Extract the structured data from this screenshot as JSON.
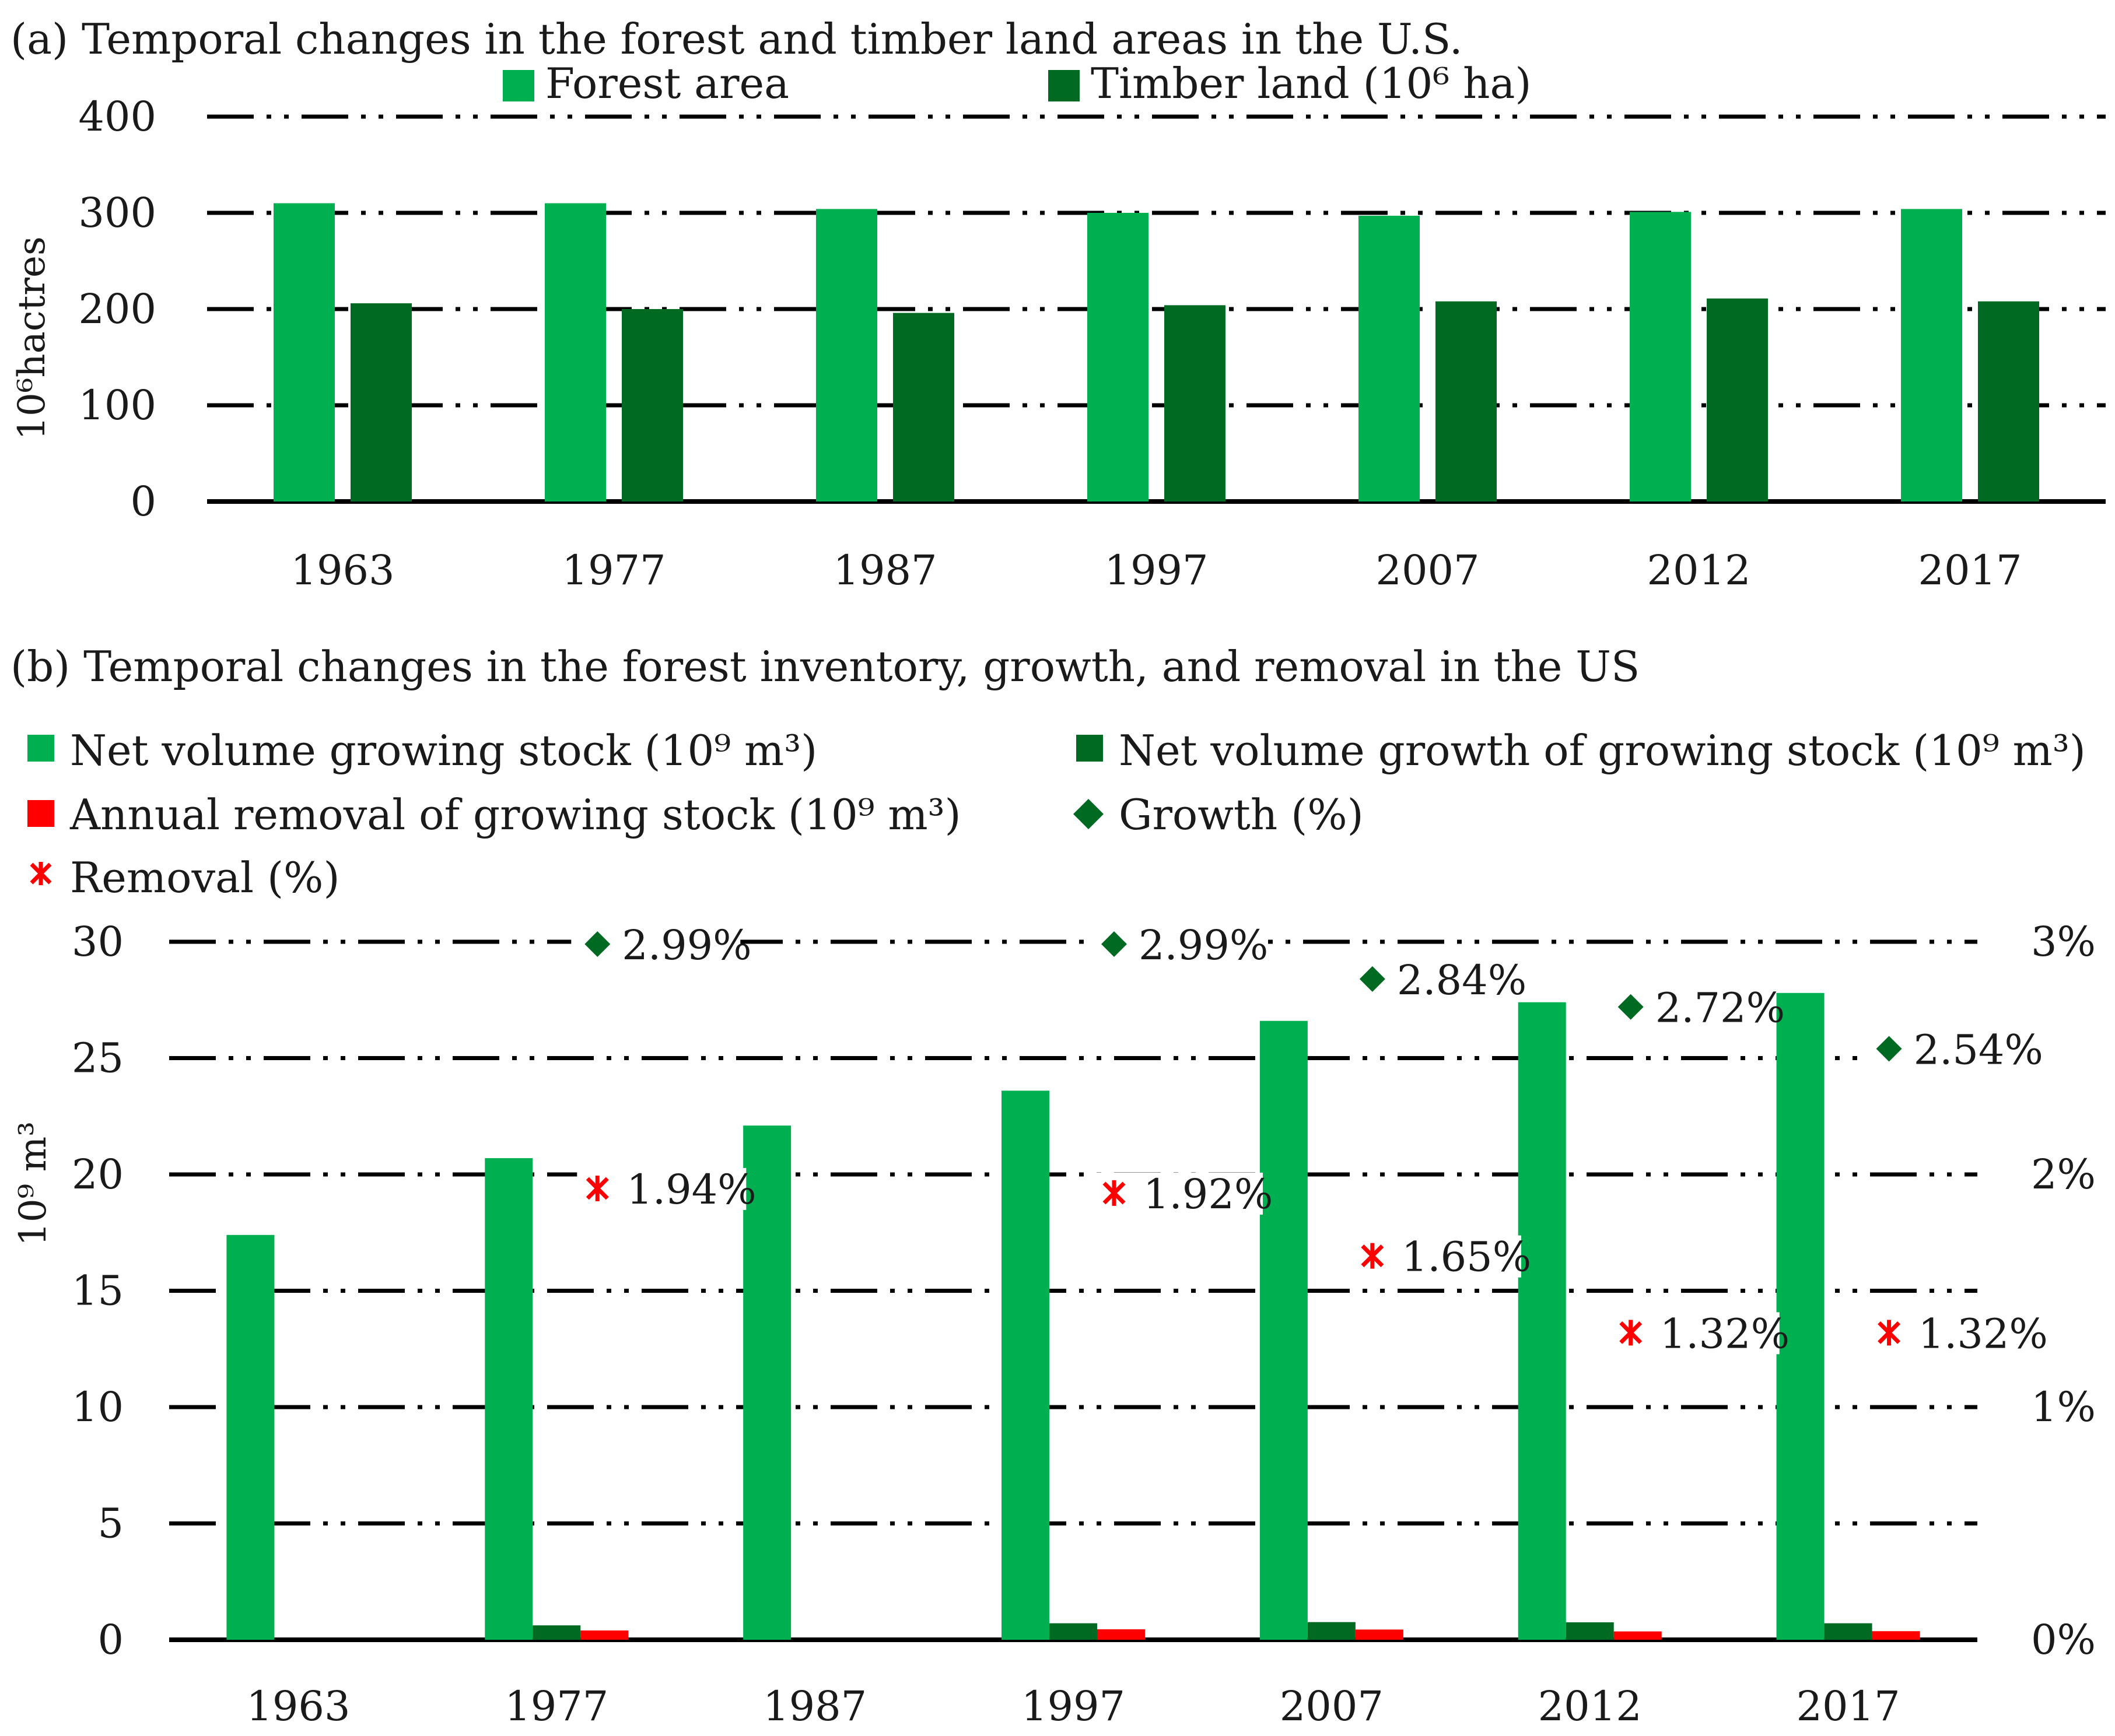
{
  "chart_data": [
    {
      "type": "bar",
      "title": "(a) Temporal changes in the forest and timber land areas in the U.S.",
      "ylabel": "10⁶hactres",
      "xlabel": "",
      "ylim": [
        0,
        400
      ],
      "yticks": [
        "0",
        "100",
        "200",
        "300",
        "400"
      ],
      "categories": [
        "1963",
        "1977",
        "1987",
        "1997",
        "2007",
        "2012",
        "2017"
      ],
      "legend_position": "top",
      "series": [
        {
          "name": "Forest area",
          "color": "#00b050",
          "values": [
            310,
            310,
            304,
            300,
            297,
            301,
            304
          ]
        },
        {
          "name": "Timber land (10⁶ ha)",
          "color": "#006a22",
          "values": [
            206,
            200,
            196,
            204,
            208,
            211,
            208
          ]
        }
      ]
    },
    {
      "type": "bar",
      "title": "(b) Temporal changes in the forest inventory, growth, and removal in the US",
      "ylabel": "10⁹ m³",
      "xlabel": "",
      "ylim": [
        0,
        30
      ],
      "y2lim": [
        0,
        3
      ],
      "yticks": [
        "0",
        "5",
        "10",
        "15",
        "20",
        "25",
        "30"
      ],
      "y2ticks": [
        "0%",
        "1%",
        "2%",
        "3%"
      ],
      "categories": [
        "1963",
        "1977",
        "1987",
        "1997",
        "2007",
        "2012",
        "2017"
      ],
      "legend_position": "top",
      "series": [
        {
          "name": "Net volume growing stock (10⁹ m³)",
          "color": "#00b050",
          "values": [
            17.4,
            20.7,
            22.1,
            23.6,
            26.6,
            27.4,
            27.8
          ]
        },
        {
          "name": "Net volume growth of growing stock (10⁹ m³)",
          "color": "#006a22",
          "values": [
            null,
            0.62,
            null,
            0.71,
            0.76,
            0.75,
            0.71
          ]
        },
        {
          "name": "Annual removal of growing stock (10⁹ m³)",
          "color": "#ff0000",
          "values": [
            null,
            0.4,
            null,
            0.45,
            0.44,
            0.36,
            0.37
          ]
        },
        {
          "name": "Growth (%)",
          "color": "#006a22",
          "axis": "secondary",
          "values": [
            null,
            2.99,
            null,
            2.99,
            2.84,
            2.72,
            2.54
          ],
          "labels": [
            null,
            "2.99%",
            null,
            "2.99%",
            "2.84%",
            "2.72%",
            "2.54%"
          ]
        },
        {
          "name": "Removal (%)",
          "color": "#ff0000",
          "axis": "secondary",
          "values": [
            null,
            1.94,
            null,
            1.92,
            1.65,
            1.32,
            1.32
          ],
          "labels": [
            null,
            "1.94%",
            null,
            "1.92%",
            "1.65%",
            "1.32%",
            "1.32%"
          ]
        }
      ]
    }
  ]
}
